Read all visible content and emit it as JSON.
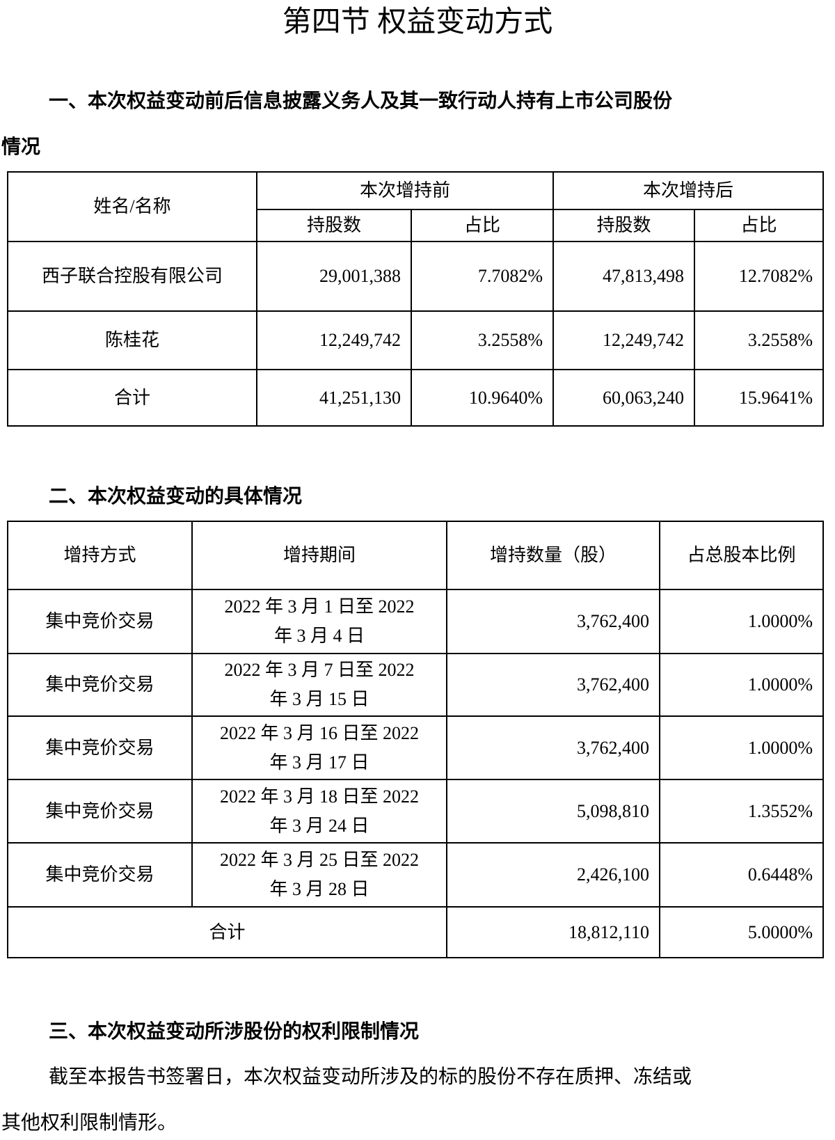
{
  "title": "第四节 权益变动方式",
  "section1": {
    "heading_line1": "一、本次权益变动前后信息披露义务人及其一致行动人持有上市公司股份",
    "heading_line2": "情况",
    "table": {
      "name_header": "姓名/名称",
      "before_header": "本次增持前",
      "after_header": "本次增持后",
      "shares_header": "持股数",
      "ratio_header": "占比",
      "rows": [
        {
          "name": "西子联合控股有限公司",
          "before_shares": "29,001,388",
          "before_ratio": "7.7082%",
          "after_shares": "47,813,498",
          "after_ratio": "12.7082%"
        },
        {
          "name": "陈桂花",
          "before_shares": "12,249,742",
          "before_ratio": "3.2558%",
          "after_shares": "12,249,742",
          "after_ratio": "3.2558%"
        },
        {
          "name": "合计",
          "before_shares": "41,251,130",
          "before_ratio": "10.9640%",
          "after_shares": "60,063,240",
          "after_ratio": "15.9641%"
        }
      ]
    }
  },
  "section2": {
    "heading": "二、本次权益变动的具体情况",
    "table": {
      "headers": [
        "增持方式",
        "增持期间",
        "增持数量（股）",
        "占总股本比例"
      ],
      "rows": [
        {
          "method": "集中竞价交易",
          "period_line1": "2022 年 3 月 1 日至 2022",
          "period_line2": "年 3 月 4 日",
          "quantity": "3,762,400",
          "ratio": "1.0000%"
        },
        {
          "method": "集中竞价交易",
          "period_line1": "2022 年 3 月 7 日至 2022",
          "period_line2": "年 3 月 15 日",
          "quantity": "3,762,400",
          "ratio": "1.0000%"
        },
        {
          "method": "集中竞价交易",
          "period_line1": "2022 年 3 月 16 日至 2022",
          "period_line2": "年 3 月 17 日",
          "quantity": "3,762,400",
          "ratio": "1.0000%"
        },
        {
          "method": "集中竞价交易",
          "period_line1": "2022 年 3 月 18 日至 2022",
          "period_line2": "年 3 月 24 日",
          "quantity": "5,098,810",
          "ratio": "1.3552%"
        },
        {
          "method": "集中竞价交易",
          "period_line1": "2022 年 3 月 25 日至 2022",
          "period_line2": "年 3 月 28 日",
          "quantity": "2,426,100",
          "ratio": "0.6448%"
        }
      ],
      "total_label": "合计",
      "total_quantity": "18,812,110",
      "total_ratio": "5.0000%"
    }
  },
  "section3": {
    "heading": "三、本次权益变动所涉股份的权利限制情况",
    "para_line1": "截至本报告书签署日，本次权益变动所涉及的标的股份不存在质押、冻结或",
    "para_line2": "其他权利限制情形。"
  }
}
